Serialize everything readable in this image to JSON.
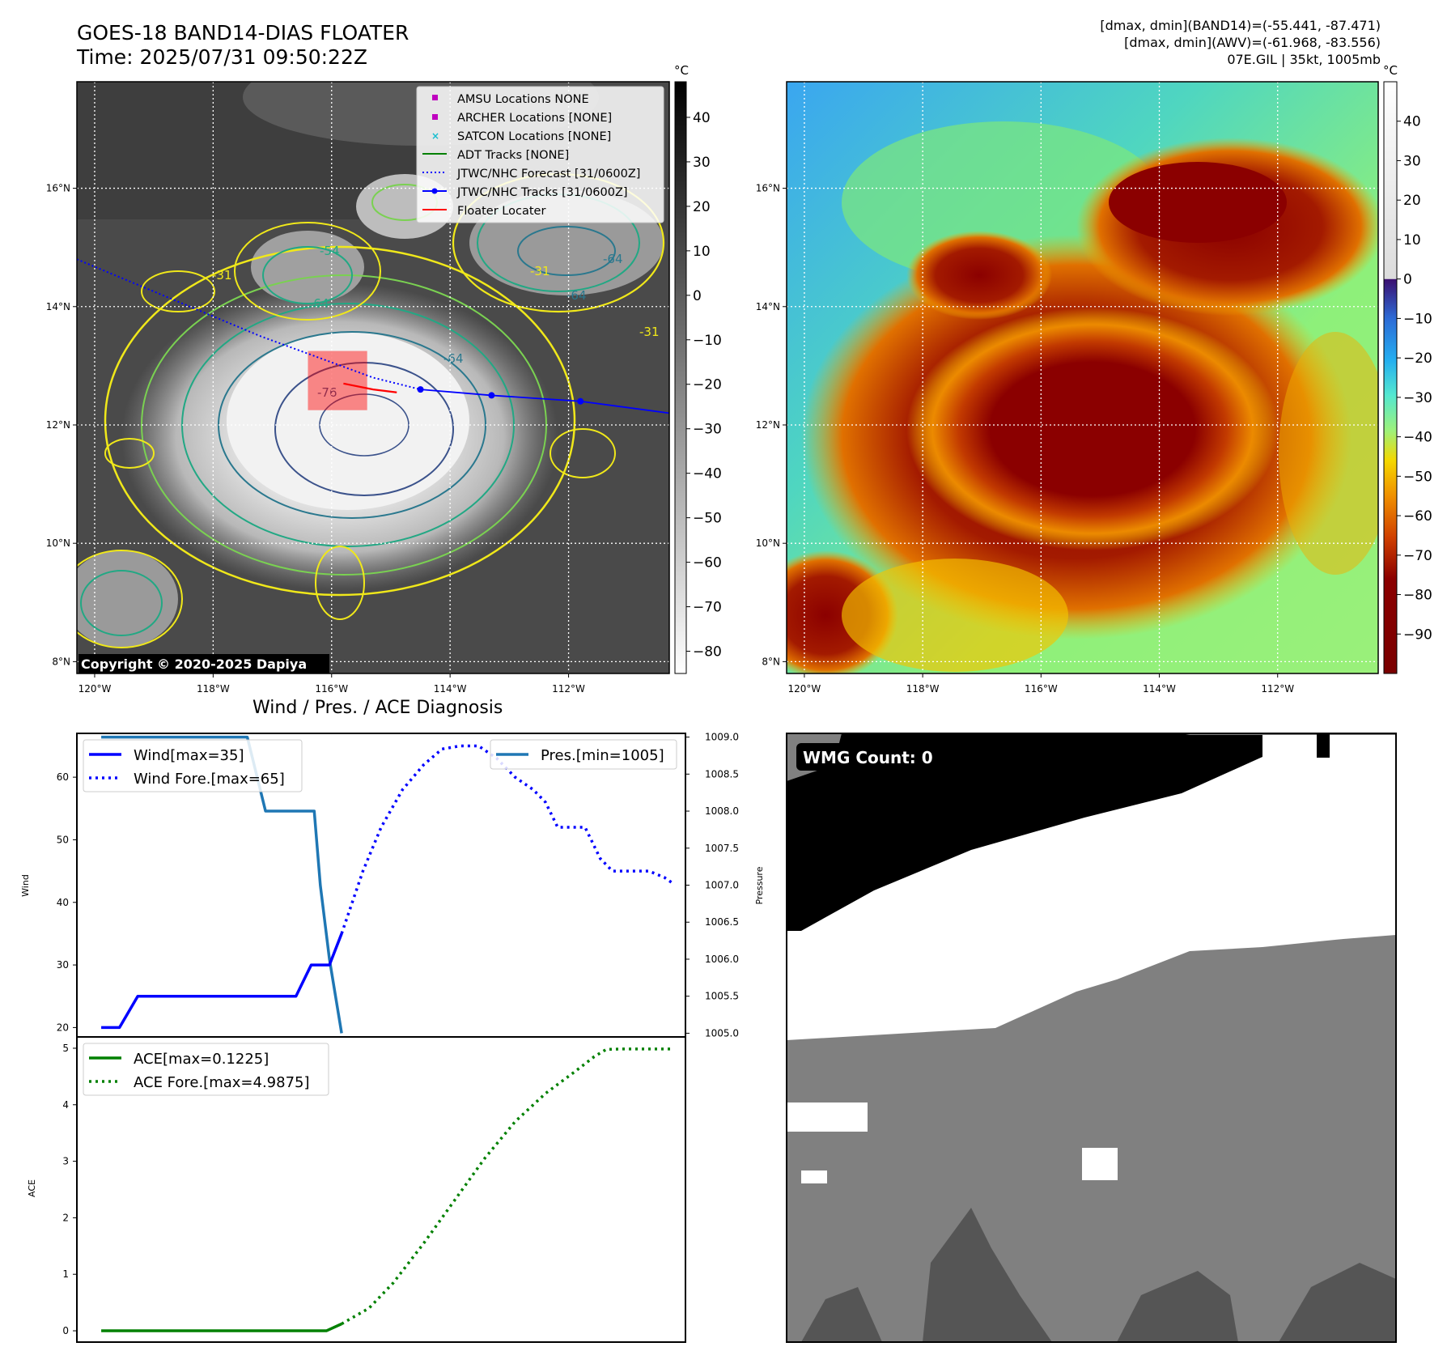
{
  "header": {
    "title_line1": "GOES-18 BAND14-DIAS FLOATER",
    "title_line2": "Time: 2025/07/31 09:50:22Z",
    "stats_line1": "[dmax, dmin](BAND14)=(-55.441, -87.471)",
    "stats_line2": "[dmax, dmin](AWV)=(-61.968, -83.556)",
    "stats_line3": "07E.GIL | 35kt, 1005mb",
    "copyright": "Copyright © 2020-2025 Dapiya"
  },
  "map_axes": {
    "lon_ticks": [
      "120°W",
      "118°W",
      "116°W",
      "114°W",
      "112°W"
    ],
    "lat_ticks": [
      "16°N",
      "14°N",
      "12°N",
      "10°N",
      "8°N"
    ],
    "lon_range": [
      -120.3,
      -110.3
    ],
    "lat_range": [
      7.8,
      17.8
    ],
    "grid": true
  },
  "colors": {
    "contour_minus31": "#f0e81a",
    "contour_minus45": "#7ad151",
    "contour_minus54": "#22a884",
    "contour_minus64": "#2a788e",
    "contour_minus76": "#3b528b",
    "track": "#0000ff",
    "floater": "#ff0000",
    "wind": "#0000ff",
    "pressure": "#1f77b4",
    "ace": "#008000",
    "wmg_dark": "#000000",
    "wmg_gray": "#808080",
    "wmg_darkgray": "#555555"
  },
  "legend": {
    "amsu": "AMSU Locations NONE",
    "archer": "ARCHER Locations [NONE]",
    "satcon": "SATCON Locations [NONE]",
    "adt": "ADT Tracks [NONE]",
    "forecast": "JTWC/NHC Forecast [31/0600Z]",
    "tracks": "JTWC/NHC Tracks [31/0600Z]",
    "floater": "Floater Locater"
  },
  "contour_labels": [
    "-31",
    "-54",
    "-64",
    "-64",
    "-76",
    "-64",
    "-31",
    "-31",
    "-64"
  ],
  "colorbar_gray": {
    "unit": "°C",
    "ticks": [
      "40",
      "30",
      "20",
      "10",
      "0",
      "−10",
      "−20",
      "−30",
      "−40",
      "−50",
      "−60",
      "−70",
      "−80"
    ],
    "range": [
      48,
      -85
    ]
  },
  "colorbar_awv": {
    "unit": "°C",
    "ticks": [
      "40",
      "30",
      "20",
      "10",
      "0",
      "−10",
      "−20",
      "−30",
      "−40",
      "−50",
      "−60",
      "−70",
      "−80",
      "−90"
    ],
    "range": [
      50,
      -100
    ]
  },
  "track": {
    "forecast_line": [
      [
        -120.3,
        14.8
      ],
      [
        -117.2,
        13.5
      ],
      [
        -115.3,
        12.8
      ],
      [
        -114.5,
        12.6
      ]
    ],
    "observed_points": [
      [
        -114.5,
        12.6
      ],
      [
        -113.3,
        12.5
      ],
      [
        -111.8,
        12.4
      ]
    ],
    "observed_end": [
      -110.3,
      12.2
    ],
    "floater_box": [
      [
        -116.4,
        12.25
      ],
      [
        -115.4,
        13.25
      ]
    ],
    "floater_line": [
      [
        -115.8,
        12.7
      ],
      [
        -115.3,
        12.6
      ],
      [
        -114.9,
        12.55
      ]
    ]
  },
  "wpa": {
    "title": "Wind / Pres. / ACE Diagnosis",
    "wind_ylabel": "Wind",
    "pres_ylabel": "Pressure",
    "ace_ylabel": "ACE",
    "legend_wind": "Wind[max=35]",
    "legend_wind_fore": "Wind Fore.[max=65]",
    "legend_pres": "Pres.[min=1005]",
    "legend_ace": "ACE[max=0.1225]",
    "legend_ace_fore": "ACE Fore.[max=4.9875]",
    "wmg_label": "WMG Count: 0"
  },
  "chart_data": [
    {
      "type": "line",
      "title": "Wind / Pres. / ACE Diagnosis",
      "ylabel": "Wind",
      "ylim": [
        18.5,
        67
      ],
      "yticks": [
        "60",
        "50",
        "40",
        "30",
        "20"
      ],
      "xlim": [
        0,
        100
      ],
      "series": [
        {
          "name": "Wind[max=35]",
          "style": "solid",
          "x": [
            4,
            7,
            10,
            36,
            38.5,
            41.5,
            43.5
          ],
          "values": [
            20,
            20,
            25,
            25,
            30,
            30,
            35
          ]
        },
        {
          "name": "Wind Fore.[max=65]",
          "style": "dotted",
          "x": [
            43.5,
            47,
            50,
            53.5,
            57,
            60,
            63,
            66,
            69,
            72,
            75,
            77,
            79,
            81,
            83.5,
            86,
            88,
            91,
            94,
            96.5,
            98
          ],
          "values": [
            35,
            45,
            52,
            58,
            62,
            64.5,
            65,
            65,
            63,
            60,
            58,
            56,
            52,
            52,
            52,
            47,
            45,
            45,
            45,
            44,
            43
          ]
        }
      ]
    },
    {
      "type": "line",
      "ylabel": "Pressure",
      "ylim": [
        1004.95,
        1009.05
      ],
      "yticks": [
        "1009.0",
        "1008.5",
        "1008.0",
        "1007.5",
        "1007.0",
        "1006.5",
        "1006.0",
        "1005.5",
        "1005.0"
      ],
      "xlim": [
        0,
        100
      ],
      "series": [
        {
          "name": "Pres.[min=1005]",
          "x": [
            4,
            28,
            31,
            39,
            40,
            41.5,
            43.5
          ],
          "values": [
            1009.0,
            1009.0,
            1008.0,
            1008.0,
            1007.0,
            1006.0,
            1005.0
          ]
        }
      ]
    },
    {
      "type": "line",
      "ylabel": "ACE",
      "ylim": [
        -0.2,
        5.2
      ],
      "yticks": [
        "5",
        "4",
        "3",
        "2",
        "1",
        "0"
      ],
      "xlim": [
        0,
        100
      ],
      "series": [
        {
          "name": "ACE[max=0.1225]",
          "style": "solid",
          "x": [
            4,
            41,
            43.5
          ],
          "values": [
            0,
            0,
            0.1225
          ]
        },
        {
          "name": "ACE Fore.[max=4.9875]",
          "style": "dotted",
          "x": [
            43.5,
            48,
            52,
            57,
            62,
            67,
            72,
            77,
            82,
            85,
            87,
            90,
            94,
            98
          ],
          "values": [
            0.1225,
            0.4,
            0.85,
            1.55,
            2.3,
            3.05,
            3.7,
            4.2,
            4.6,
            4.85,
            4.98,
            4.9875,
            4.9875,
            4.9875
          ]
        }
      ]
    }
  ]
}
